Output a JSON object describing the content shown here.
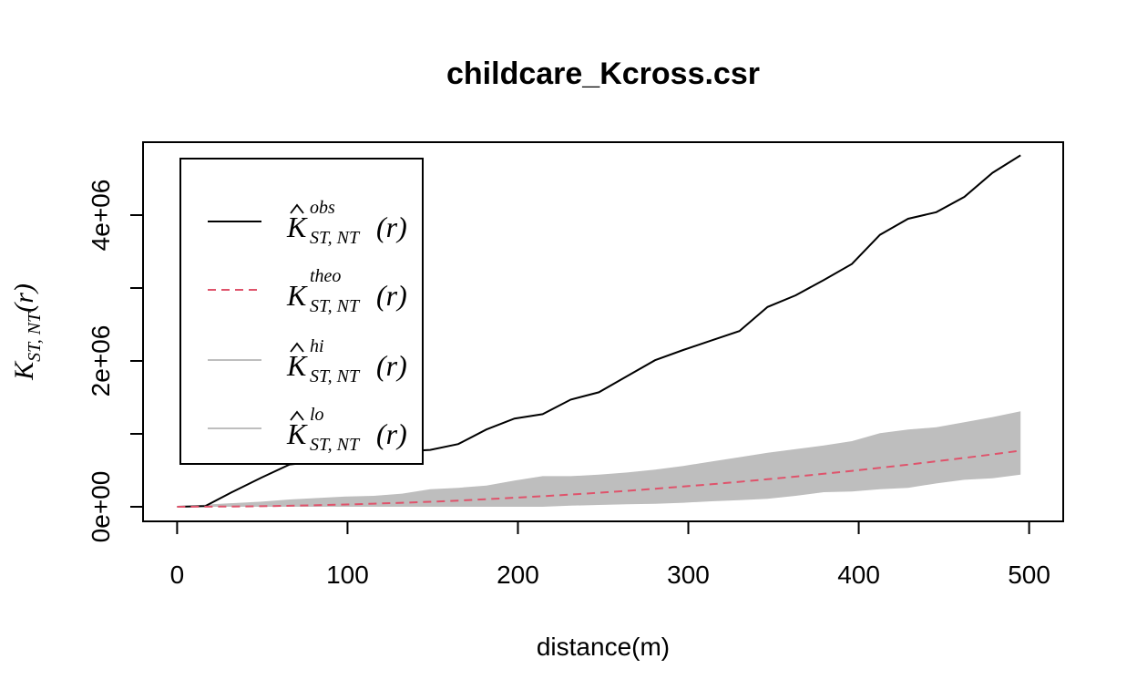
{
  "chart_data": {
    "type": "line",
    "title": "childcare_Kcross.csr",
    "xlabel": "distance(m)",
    "ylabel": {
      "base": "K",
      "sub": "ST, NT",
      "arg": "(r)"
    },
    "xlim": [
      -20,
      520
    ],
    "ylim": [
      -200000,
      5000000
    ],
    "x_ticks": [
      0,
      100,
      200,
      300,
      400,
      500
    ],
    "x_tick_labels": [
      "0",
      "100",
      "200",
      "300",
      "400",
      "500"
    ],
    "y_ticks": [
      0,
      1000000,
      2000000,
      3000000,
      4000000
    ],
    "y_tick_labels": [
      "0e+00",
      "",
      "2e+06",
      "",
      "4e+06"
    ],
    "grid": false,
    "legend_position": "top-left",
    "x": [
      0,
      16.5,
      33,
      49.5,
      66,
      82.5,
      99,
      115.5,
      132,
      148.5,
      165,
      181.5,
      198,
      214.5,
      231,
      247.5,
      264,
      280.5,
      297,
      313.5,
      330,
      346.5,
      363,
      379.5,
      396,
      412.5,
      429,
      445.5,
      462,
      478.5,
      495
    ],
    "series": [
      {
        "key": "obs",
        "type": "line",
        "color": "#000000",
        "dash": "solid",
        "values": [
          0,
          10000,
          210000,
          400000,
          580000,
          620000,
          640000,
          680000,
          760000,
          780000,
          860000,
          1060000,
          1210000,
          1270000,
          1470000,
          1570000,
          1790000,
          2010000,
          2150000,
          2280000,
          2410000,
          2740000,
          2900000,
          3110000,
          3330000,
          3730000,
          3950000,
          4040000,
          4250000,
          4580000,
          4820000
        ]
      },
      {
        "key": "theo",
        "type": "line",
        "color": "#DF536B",
        "dash": "dashed",
        "values": [
          0,
          800,
          3400,
          7700,
          13700,
          21400,
          30800,
          41900,
          54700,
          69300,
          85500,
          103500,
          123200,
          144500,
          167600,
          192400,
          218900,
          247200,
          277100,
          308800,
          342100,
          377200,
          414000,
          452500,
          492700,
          534700,
          578100,
          623600,
          670500,
          719200,
          769700
        ]
      }
    ],
    "envelope": {
      "color": "#BEBEBE",
      "hi": [
        0,
        30000,
        50000,
        70000,
        100000,
        120000,
        140000,
        150000,
        180000,
        240000,
        260000,
        290000,
        360000,
        420000,
        420000,
        440000,
        470000,
        510000,
        560000,
        620000,
        680000,
        740000,
        790000,
        840000,
        900000,
        1010000,
        1060000,
        1090000,
        1160000,
        1230000,
        1310000
      ],
      "lo": [
        0,
        0,
        0,
        0,
        0,
        0,
        0,
        0,
        0,
        0,
        0,
        0,
        0,
        0,
        15000,
        25000,
        35000,
        40000,
        55000,
        75000,
        90000,
        110000,
        150000,
        200000,
        210000,
        240000,
        260000,
        320000,
        370000,
        390000,
        440000
      ]
    },
    "legend": [
      {
        "key": "obs",
        "base": "K",
        "hat": true,
        "sup": "obs",
        "sub": "ST, NT",
        "arg": "(r)",
        "style": "solid",
        "color": "#000000"
      },
      {
        "key": "theo",
        "base": "K",
        "hat": false,
        "sup": "theo",
        "sub": "ST, NT",
        "arg": "(r)",
        "style": "dashed",
        "color": "#DF536B"
      },
      {
        "key": "hi",
        "base": "K",
        "hat": true,
        "sup": "hi",
        "sub": "ST, NT",
        "arg": "(r)",
        "style": "solid",
        "color": "#BEBEBE"
      },
      {
        "key": "lo",
        "base": "K",
        "hat": true,
        "sup": "lo",
        "sub": "ST, NT",
        "arg": "(r)",
        "style": "solid",
        "color": "#BEBEBE"
      }
    ]
  }
}
